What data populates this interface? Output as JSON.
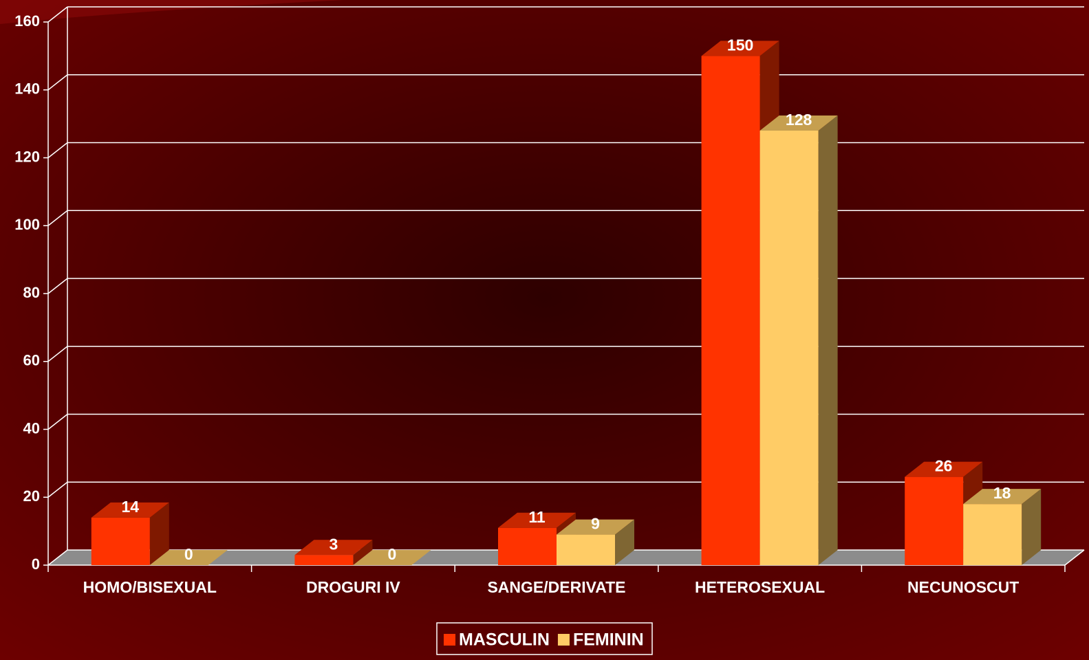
{
  "chart_data": {
    "type": "bar3d",
    "categories": [
      "HOMO/BISEXUAL",
      "DROGURI IV",
      "SANGE/DERIVATE",
      "HETEROSEXUAL",
      "NECUNOSCUT"
    ],
    "series": [
      {
        "name": "MASCULIN",
        "color": "#ff3300",
        "values": [
          14,
          3,
          11,
          150,
          26
        ]
      },
      {
        "name": "FEMININ",
        "color": "#ffcc66",
        "values": [
          0,
          0,
          9,
          128,
          18
        ]
      }
    ],
    "ylim": [
      0,
      160
    ],
    "yticks": [
      0,
      20,
      40,
      60,
      80,
      100,
      120,
      140,
      160
    ],
    "grid": true,
    "legend": "bottom"
  }
}
